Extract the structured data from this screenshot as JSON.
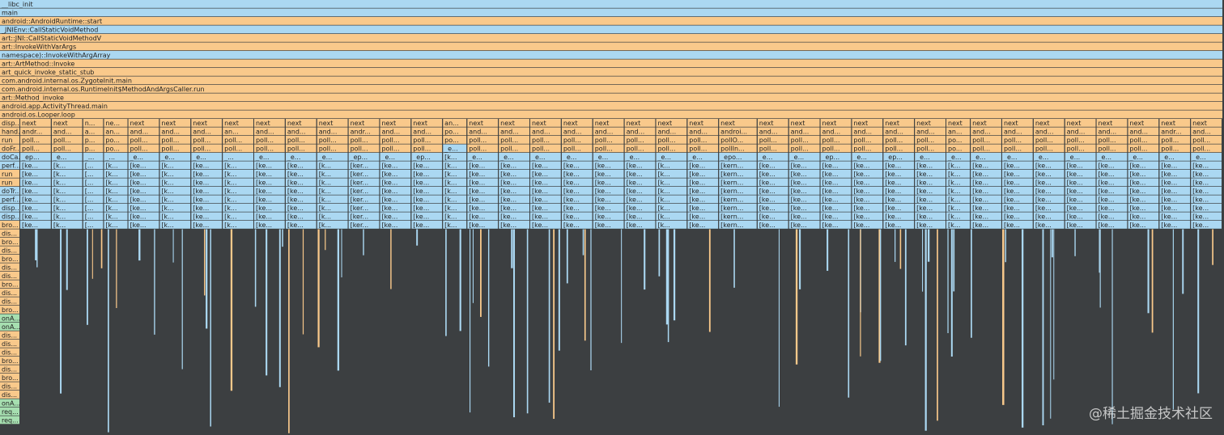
{
  "full_rows": [
    {
      "label": "__libc_init",
      "color": "#abd8f2"
    },
    {
      "label": "main",
      "color": "#abd8f2"
    },
    {
      "label": "android::AndroidRuntime::start",
      "color": "#f9c98b"
    },
    {
      "label": "_JNIEnv::CallStaticVoidMethod",
      "color": "#abd8f2"
    },
    {
      "label": "art::JNI::CallStaticVoidMethodV",
      "color": "#f9c98b"
    },
    {
      "label": "art::InvokeWithVarArgs",
      "color": "#f9c98b"
    },
    {
      "label": "namespace)::InvokeWithArgArray",
      "color": "#abd8f2"
    },
    {
      "label": "art::ArtMethod::Invoke",
      "color": "#f9c98b"
    },
    {
      "label": "art_quick_invoke_static_stub",
      "color": "#f9c98b"
    },
    {
      "label": "com.android.internal.os.ZygoteInit.main",
      "color": "#f9c98b"
    },
    {
      "label": "com.android.internal.os.RuntimeInit$MethodAndArgsCaller.run",
      "color": "#f9c98b"
    },
    {
      "label": "art::Method_invoke",
      "color": "#f9c98b"
    },
    {
      "label": "android.app.ActivityThread.main",
      "color": "#f9c98b"
    },
    {
      "label": "android.os.Looper.loop",
      "color": "#f9c98b"
    }
  ],
  "left_column": [
    "disp...",
    "hand...",
    "run",
    "doFr...",
    "doCa...",
    "perf...",
    "run",
    "run",
    "doTr...",
    "perf...",
    "disp...",
    "disp...",
    "bro...",
    "dis...",
    "bro...",
    "dis...",
    "bro...",
    "dis...",
    "dis...",
    "bro...",
    "dis...",
    "dis...",
    "bro...",
    "onA...",
    "onA...",
    "dis...",
    "dis...",
    "dis...",
    "bro...",
    "dis...",
    "bro...",
    "dis...",
    "dis...",
    "onA...",
    "req...",
    "req..."
  ],
  "columns": [
    [
      "next",
      "andr...",
      "poll...",
      "poll...",
      "_ep...",
      "[ke...",
      "[ke...",
      "[ke...",
      "[ke...",
      "[ke...",
      "[ke...",
      "[ke...",
      "[ke..."
    ],
    [
      "next",
      "and...",
      "poll...",
      "poll...",
      "_e...",
      "[k...",
      "[k...",
      "[k...",
      "[k...",
      "[k...",
      "[k...",
      "[k...",
      "[k..."
    ],
    [
      "n...",
      "a...",
      "p...",
      "p...",
      "_...",
      "[...",
      "[...",
      "[...",
      "[...",
      "[...",
      "[...",
      "[...",
      "[..."
    ],
    [
      "ne...",
      "an...",
      "po...",
      "po...",
      "_...",
      "[k...",
      "[k...",
      "[k...",
      "[k...",
      "[k...",
      "[k...",
      "[k...",
      "[k..."
    ],
    [
      "next",
      "and...",
      "poll...",
      "poll...",
      "_e...",
      "[ke...",
      "[ke...",
      "[ke...",
      "[ke...",
      "[ke...",
      "[ke...",
      "[ke...",
      "[ke..."
    ],
    [
      "next",
      "and...",
      "poll...",
      "poll...",
      "_e...",
      "[k...",
      "[k...",
      "[k...",
      "[k...",
      "[k...",
      "[k...",
      "[k...",
      "[k..."
    ],
    [
      "next",
      "and...",
      "poll...",
      "poll...",
      "_e...",
      "[ke...",
      "[ke...",
      "[ke...",
      "[ke...",
      "[ke...",
      "[ke...",
      "[ke...",
      "[ke..."
    ],
    [
      "next",
      "an...",
      "poll...",
      "poll...",
      "_...",
      "[k...",
      "[k...",
      "[k...",
      "[k...",
      "[k...",
      "[k...",
      "[k...",
      "[k..."
    ],
    [
      "next",
      "and...",
      "poll...",
      "poll...",
      "_e...",
      "[ke...",
      "[ke...",
      "[ke...",
      "[ke...",
      "[ke...",
      "[ke...",
      "[ke...",
      "[ke..."
    ],
    [
      "next",
      "and...",
      "poll...",
      "poll...",
      "_e...",
      "[ke...",
      "[ke...",
      "[ke...",
      "[ke...",
      "[ke...",
      "[ke...",
      "[ke...",
      "[ke..."
    ],
    [
      "next",
      "and...",
      "poll...",
      "poll...",
      "_e...",
      "[k...",
      "[k...",
      "[k...",
      "[k...",
      "[k...",
      "[k...",
      "[k...",
      "[k..."
    ],
    [
      "next",
      "andr...",
      "poll...",
      "poll...",
      "_ep...",
      "[ker...",
      "[ker...",
      "[ker...",
      "[ker...",
      "[ker...",
      "[ker...",
      "[ker...",
      "[ker..."
    ],
    [
      "next",
      "and...",
      "poll...",
      "poll...",
      "_e...",
      "[ke...",
      "[ke...",
      "[ke...",
      "[ke...",
      "[ke...",
      "[ke...",
      "[ke...",
      "[ke..."
    ],
    [
      "next",
      "and...",
      "poll...",
      "poll...",
      "_ep...",
      "[ke...",
      "[ke...",
      "[ke...",
      "[ke...",
      "[ke...",
      "[ke...",
      "[ke...",
      "[ke..."
    ],
    [
      "an...",
      "po...",
      "po...",
      "_e...",
      "[k...",
      "[k...",
      "[k...",
      "[k...",
      "[k...",
      "[k...",
      "[k...",
      "[k...",
      "[k..."
    ],
    [
      "next",
      "and...",
      "poll...",
      "poll...",
      "_e...",
      "[ke...",
      "[ke...",
      "[ke...",
      "[ke...",
      "[ke...",
      "[ke...",
      "[ke...",
      "[ke..."
    ],
    [
      "next",
      "and...",
      "poll...",
      "poll...",
      "_e...",
      "[ke...",
      "[ke...",
      "[ke...",
      "[ke...",
      "[ke...",
      "[ke...",
      "[ke...",
      "[ke..."
    ],
    [
      "next",
      "and...",
      "poll...",
      "poll...",
      "_e...",
      "[ke...",
      "[ke...",
      "[ke...",
      "[ke...",
      "[ke...",
      "[ke...",
      "[ke...",
      "[ke..."
    ],
    [
      "next",
      "and...",
      "poll...",
      "poll...",
      "_e...",
      "[ke...",
      "[ke...",
      "[ke...",
      "[ke...",
      "[ke...",
      "[ke...",
      "[ke...",
      "[ke..."
    ],
    [
      "next",
      "and...",
      "poll...",
      "poll...",
      "_e...",
      "[ke...",
      "[ke...",
      "[ke...",
      "[ke...",
      "[ke...",
      "[ke...",
      "[ke...",
      "[ke..."
    ],
    [
      "next",
      "and...",
      "poll...",
      "poll...",
      "_e...",
      "[ke...",
      "[ke...",
      "[ke...",
      "[ke...",
      "[ke...",
      "[ke...",
      "[ke...",
      "[ke..."
    ],
    [
      "next",
      "and...",
      "poll...",
      "poll...",
      "_e...",
      "[k...",
      "[k...",
      "[k...",
      "[k...",
      "[k...",
      "[k...",
      "[k...",
      "[k..."
    ],
    [
      "next",
      "and...",
      "poll...",
      "poll...",
      "_e...",
      "[ke...",
      "[ke...",
      "[ke...",
      "[ke...",
      "[ke...",
      "[ke...",
      "[ke...",
      "[ke..."
    ],
    [
      "next",
      "androi...",
      "pollO...",
      "pollIn...",
      "_epo...",
      "[kern...",
      "[kern...",
      "[kern...",
      "[kern...",
      "[kern...",
      "[kern...",
      "[kern...",
      "[kern..."
    ],
    [
      "next",
      "and...",
      "poll...",
      "poll...",
      "_e...",
      "[ke...",
      "[ke...",
      "[ke...",
      "[ke...",
      "[ke...",
      "[ke...",
      "[ke...",
      "[ke..."
    ],
    [
      "next",
      "and...",
      "poll...",
      "poll...",
      "_e...",
      "[ke...",
      "[ke...",
      "[ke...",
      "[ke...",
      "[ke...",
      "[ke...",
      "[ke...",
      "[ke..."
    ],
    [
      "next",
      "and...",
      "poll...",
      "poll...",
      "_ep...",
      "[ke...",
      "[ke...",
      "[ke...",
      "[ke...",
      "[ke...",
      "[ke...",
      "[ke...",
      "[ke..."
    ],
    [
      "next",
      "and...",
      "poll...",
      "poll...",
      "_e...",
      "[ke...",
      "[ke...",
      "[ke...",
      "[ke...",
      "[ke...",
      "[ke...",
      "[ke...",
      "[ke..."
    ],
    [
      "next",
      "and...",
      "poll...",
      "poll...",
      "_ep...",
      "[ke...",
      "[ke...",
      "[ke...",
      "[ke...",
      "[ke...",
      "[ke...",
      "[ke...",
      "[ke..."
    ],
    [
      "next",
      "and...",
      "poll...",
      "poll...",
      "_e...",
      "[ke...",
      "[ke...",
      "[ke...",
      "[ke...",
      "[ke...",
      "[ke...",
      "[ke...",
      "[ke..."
    ],
    [
      "next",
      "an...",
      "po...",
      "po...",
      "_e...",
      "[k...",
      "[k...",
      "[k...",
      "[k...",
      "[k...",
      "[k...",
      "[k...",
      "[k..."
    ],
    [
      "next",
      "and...",
      "poll...",
      "poll...",
      "_e...",
      "[ke...",
      "[ke...",
      "[ke...",
      "[ke...",
      "[ke...",
      "[ke...",
      "[ke...",
      "[ke..."
    ],
    [
      "next",
      "and...",
      "poll...",
      "poll...",
      "_e...",
      "[ke...",
      "[ke...",
      "[ke...",
      "[ke...",
      "[ke...",
      "[ke...",
      "[ke...",
      "[ke..."
    ],
    [
      "next",
      "and...",
      "poll...",
      "poll...",
      "_e...",
      "[ke...",
      "[ke...",
      "[ke...",
      "[ke...",
      "[ke...",
      "[ke...",
      "[ke...",
      "[ke..."
    ],
    [
      "next",
      "and...",
      "poll...",
      "poll...",
      "_e...",
      "[ke...",
      "[ke...",
      "[ke...",
      "[ke...",
      "[ke...",
      "[ke...",
      "[ke...",
      "[ke..."
    ],
    [
      "next",
      "and...",
      "poll...",
      "poll...",
      "_e...",
      "[ke...",
      "[ke...",
      "[ke...",
      "[ke...",
      "[ke...",
      "[ke...",
      "[ke...",
      "[ke..."
    ],
    [
      "next",
      "and...",
      "poll...",
      "poll...",
      "_e...",
      "[ke...",
      "[ke...",
      "[ke...",
      "[ke...",
      "[ke...",
      "[ke...",
      "[ke...",
      "[ke..."
    ],
    [
      "next",
      "andr...",
      "poll...",
      "poll...",
      "_e...",
      "[ke...",
      "[ke...",
      "[ke...",
      "[ke...",
      "[ke...",
      "[ke...",
      "[ke...",
      "[ke..."
    ],
    [
      "next",
      "and...",
      "poll...",
      "poll...",
      "_e...",
      "[ke...",
      "[ke...",
      "[ke...",
      "[ke...",
      "[ke...",
      "[ke...",
      "[ke...",
      "[ke..."
    ]
  ],
  "watermark": "@稀土掘金技术社区"
}
